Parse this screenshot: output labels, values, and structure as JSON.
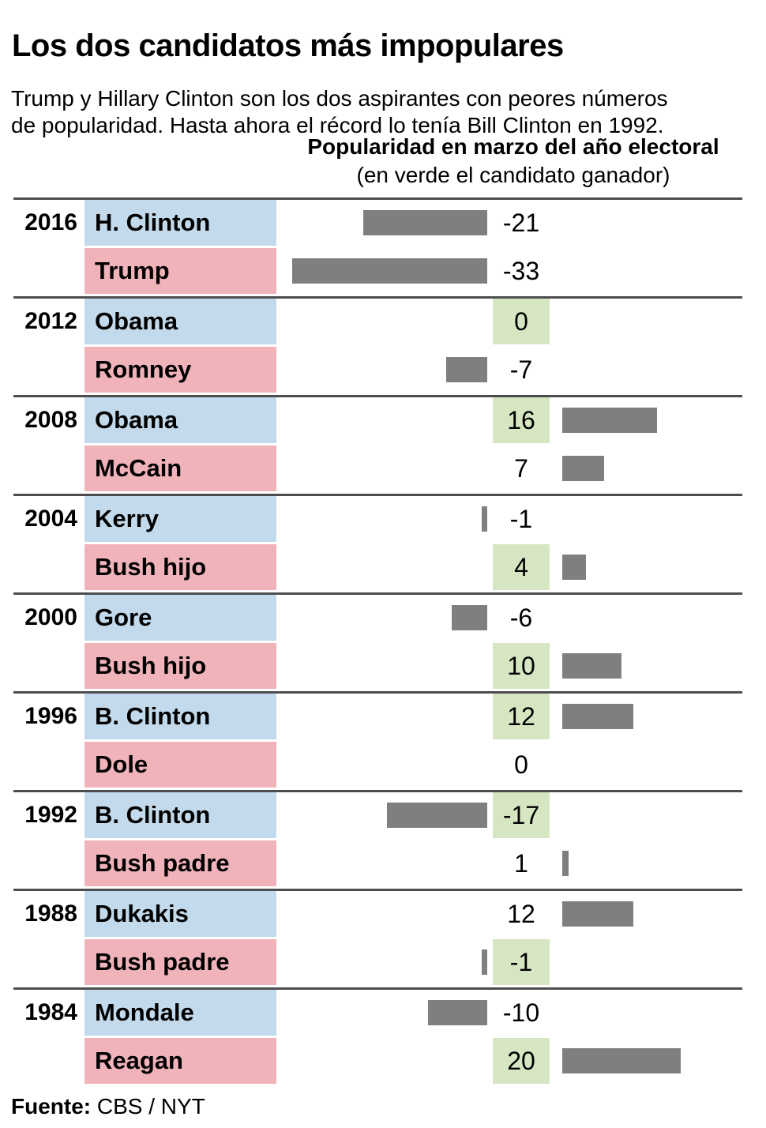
{
  "page": {
    "title": "Los dos candidatos más impopulares",
    "subtitle_line1": "Trump y Hillary Clinton son los dos aspirantes con peores números",
    "subtitle_line2": "de popularidad. Hasta ahora el récord lo tenía Bill Clinton en 1992.",
    "footer_label": "Fuente:",
    "footer_value": "CBS / NYT"
  },
  "colors": {
    "democrat_bg": "#c2daeb",
    "republican_bg": "#f0b3ba",
    "winner_bg": "#d7e6c2",
    "bar": "#7f7f7f",
    "separator": "#4d4d4d"
  },
  "chart_data": {
    "type": "bar",
    "orientation": "horizontal",
    "title": "Popularidad en marzo del año electoral",
    "note": "(en verde el candidato ganador)",
    "xlim": [
      -33,
      20
    ],
    "value_of_zero_axis": 0,
    "legend": "green highlight marks the winning candidate; blue = Democrat, pink = Republican",
    "groups": [
      {
        "year": "2016",
        "rows": [
          {
            "candidate": "H. Clinton",
            "party": "democrat",
            "value": -21,
            "winner": false
          },
          {
            "candidate": "Trump",
            "party": "republican",
            "value": -33,
            "winner": false
          }
        ]
      },
      {
        "year": "2012",
        "rows": [
          {
            "candidate": "Obama",
            "party": "democrat",
            "value": 0,
            "winner": true
          },
          {
            "candidate": "Romney",
            "party": "republican",
            "value": -7,
            "winner": false
          }
        ]
      },
      {
        "year": "2008",
        "rows": [
          {
            "candidate": "Obama",
            "party": "democrat",
            "value": 16,
            "winner": true
          },
          {
            "candidate": "McCain",
            "party": "republican",
            "value": 7,
            "winner": false
          }
        ]
      },
      {
        "year": "2004",
        "rows": [
          {
            "candidate": "Kerry",
            "party": "democrat",
            "value": -1,
            "winner": false
          },
          {
            "candidate": "Bush hijo",
            "party": "republican",
            "value": 4,
            "winner": true
          }
        ]
      },
      {
        "year": "2000",
        "rows": [
          {
            "candidate": "Gore",
            "party": "democrat",
            "value": -6,
            "winner": false
          },
          {
            "candidate": "Bush hijo",
            "party": "republican",
            "value": 10,
            "winner": true
          }
        ]
      },
      {
        "year": "1996",
        "rows": [
          {
            "candidate": "B. Clinton",
            "party": "democrat",
            "value": 12,
            "winner": true
          },
          {
            "candidate": "Dole",
            "party": "republican",
            "value": 0,
            "winner": false
          }
        ]
      },
      {
        "year": "1992",
        "rows": [
          {
            "candidate": "B. Clinton",
            "party": "democrat",
            "value": -17,
            "winner": true
          },
          {
            "candidate": "Bush padre",
            "party": "republican",
            "value": 1,
            "winner": false
          }
        ]
      },
      {
        "year": "1988",
        "rows": [
          {
            "candidate": "Dukakis",
            "party": "democrat",
            "value": 12,
            "winner": false
          },
          {
            "candidate": "Bush padre",
            "party": "republican",
            "value": -1,
            "winner": true
          }
        ]
      },
      {
        "year": "1984",
        "rows": [
          {
            "candidate": "Mondale",
            "party": "democrat",
            "value": -10,
            "winner": false
          },
          {
            "candidate": "Reagan",
            "party": "republican",
            "value": 20,
            "winner": true
          }
        ]
      }
    ]
  }
}
